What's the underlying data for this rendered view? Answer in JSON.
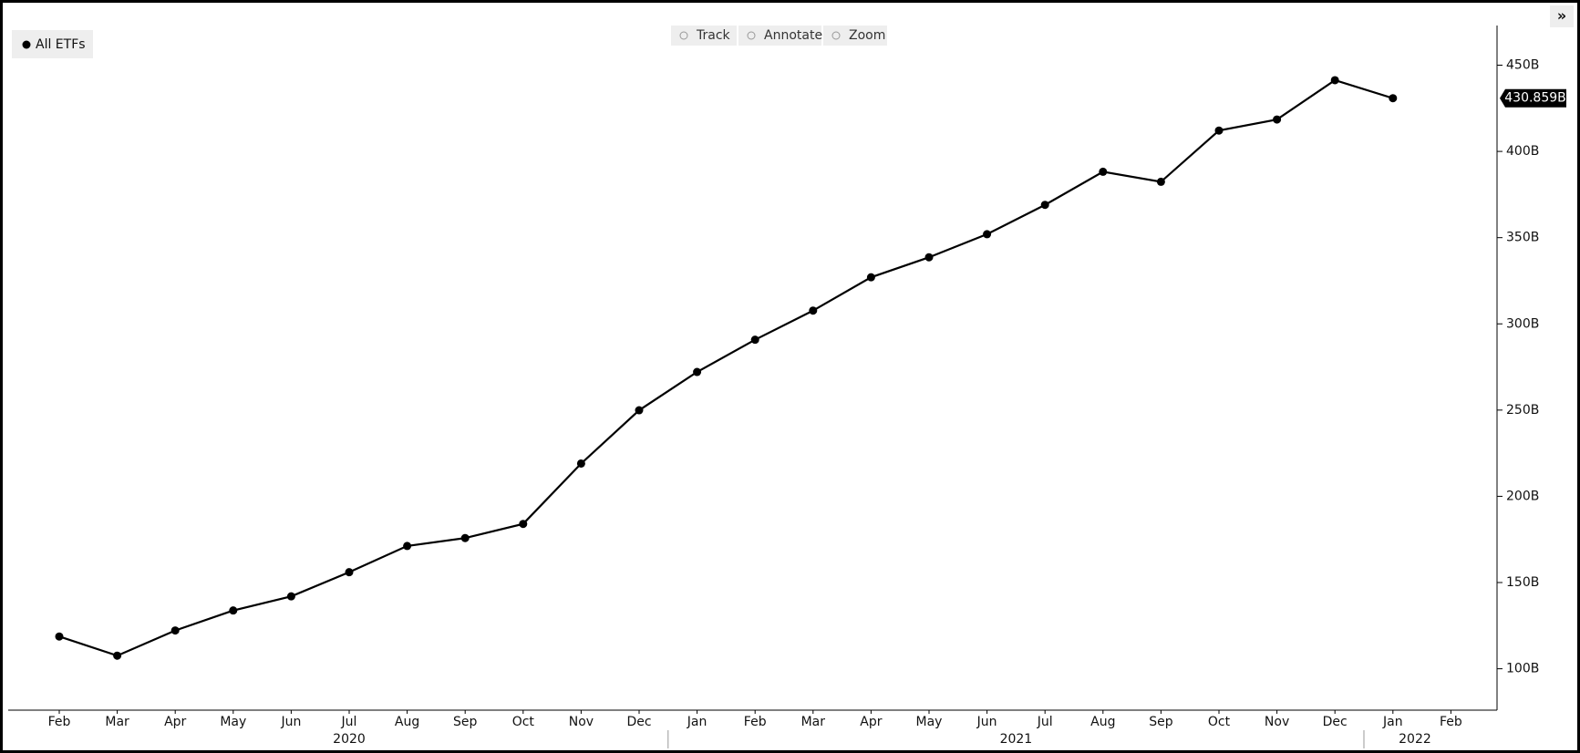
{
  "chart_data": {
    "type": "line",
    "legend": "All ETFs",
    "toolbar": [
      "Track",
      "Annotate",
      "Zoom"
    ],
    "categories": [
      "Feb",
      "Mar",
      "Apr",
      "May",
      "Jun",
      "Jul",
      "Aug",
      "Sep",
      "Oct",
      "Nov",
      "Dec",
      "Jan",
      "Feb",
      "Mar",
      "Apr",
      "May",
      "Jun",
      "Jul",
      "Aug",
      "Sep",
      "Oct",
      "Nov",
      "Dec",
      "Jan",
      "Feb"
    ],
    "years": [
      "2020",
      "2021",
      "2022"
    ],
    "series": [
      {
        "name": "All ETFs",
        "color": "#000000",
        "values": [
          118.7,
          107.6,
          122.2,
          133.8,
          142,
          156,
          171.2,
          175.8,
          184,
          219,
          249.9,
          272.1,
          290.8,
          307.7,
          327,
          338.6,
          352,
          369,
          388.2,
          382.4,
          412.1,
          418.5,
          441.3,
          430.859,
          null
        ],
        "value_labels": [
          null,
          null,
          null,
          null,
          null,
          null,
          null,
          null,
          null,
          null,
          null,
          null,
          null,
          null,
          null,
          null,
          null,
          null,
          null,
          null,
          null,
          null,
          null,
          "430.859B",
          null
        ]
      }
    ],
    "ylim": [
      76,
      473
    ],
    "yticks": [
      {
        "value": 100,
        "label": "100B"
      },
      {
        "value": 150,
        "label": "150B"
      },
      {
        "value": 200,
        "label": "200B"
      },
      {
        "value": 250,
        "label": "250B"
      },
      {
        "value": 300,
        "label": "300B"
      },
      {
        "value": 350,
        "label": "350B"
      },
      {
        "value": 400,
        "label": "400B"
      },
      {
        "value": 450,
        "label": "450B"
      }
    ],
    "grid": false,
    "legend_position": "top-left"
  }
}
